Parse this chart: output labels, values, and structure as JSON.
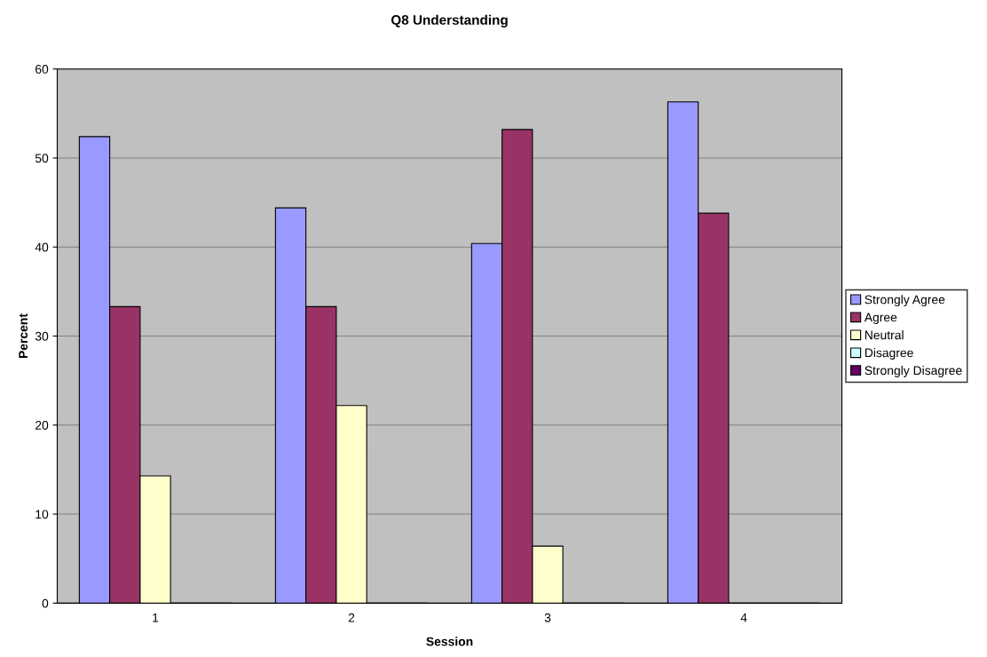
{
  "chart_data": {
    "type": "bar",
    "title": "Q8 Understanding",
    "xlabel": "Session",
    "ylabel": "Percent",
    "categories": [
      "1",
      "2",
      "3",
      "4"
    ],
    "series": [
      {
        "name": "Strongly Agree",
        "color": "#9999ff",
        "values": [
          52.4,
          44.4,
          40.4,
          56.3
        ]
      },
      {
        "name": "Agree",
        "color": "#993366",
        "values": [
          33.3,
          33.3,
          53.2,
          43.8
        ]
      },
      {
        "name": "Neutral",
        "color": "#ffffcc",
        "values": [
          14.3,
          22.2,
          6.4,
          0
        ]
      },
      {
        "name": "Disagree",
        "color": "#ccffff",
        "values": [
          0,
          0,
          0,
          0
        ]
      },
      {
        "name": "Strongly Disagree",
        "color": "#660066",
        "values": [
          0,
          0,
          0,
          0
        ]
      }
    ],
    "ylim": [
      0,
      60
    ],
    "yticks": [
      0,
      10,
      20,
      30,
      40,
      50,
      60
    ],
    "grid": "y",
    "legend": "right"
  }
}
